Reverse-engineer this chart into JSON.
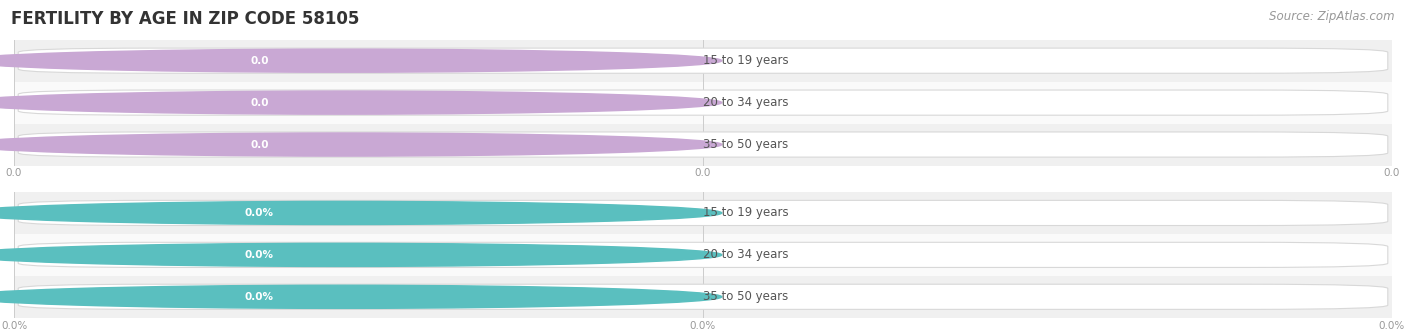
{
  "title": "FERTILITY BY AGE IN ZIP CODE 58105",
  "source_text": "Source: ZipAtlas.com",
  "groups": [
    {
      "labels": [
        "15 to 19 years",
        "20 to 34 years",
        "35 to 50 years"
      ],
      "values": [
        0.0,
        0.0,
        0.0
      ],
      "bar_color": "#c9a8d4",
      "bar_bg_color": "#f2ecf6",
      "label_color": "#555555",
      "value_suffix": "",
      "tick_labels": [
        "0.0",
        "0.0",
        "0.0"
      ],
      "row_colors": [
        "#f0f0f0",
        "#fafafa",
        "#f0f0f0"
      ]
    },
    {
      "labels": [
        "15 to 19 years",
        "20 to 34 years",
        "35 to 50 years"
      ],
      "values": [
        0.0,
        0.0,
        0.0
      ],
      "bar_color": "#5abfbf",
      "bar_bg_color": "#e5f4f4",
      "label_color": "#555555",
      "value_suffix": "%",
      "tick_labels": [
        "0.0%",
        "0.0%",
        "0.0%"
      ],
      "row_colors": [
        "#f0f0f0",
        "#fafafa",
        "#f0f0f0"
      ]
    }
  ],
  "background_color": "#ffffff",
  "title_color": "#333333",
  "title_fontsize": 12,
  "source_color": "#999999",
  "source_fontsize": 8.5,
  "figsize": [
    14.06,
    3.31
  ],
  "dpi": 100
}
